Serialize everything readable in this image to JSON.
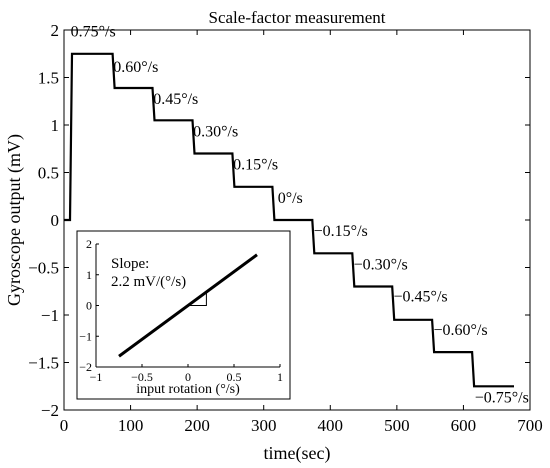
{
  "chart_data": [
    {
      "type": "line",
      "title": "Scale-factor measurement",
      "xlabel": "time(sec)",
      "ylabel": "Gyroscope output (mV)",
      "xlim": [
        0,
        700
      ],
      "ylim": [
        -2,
        2
      ],
      "xticks": [
        0,
        100,
        200,
        300,
        400,
        500,
        600,
        700
      ],
      "yticks": [
        -2,
        -1.5,
        -1,
        -0.5,
        0,
        0.5,
        1,
        1.5,
        2
      ],
      "xtick_labels": [
        "0",
        "100",
        "200",
        "300",
        "400",
        "500",
        "600",
        "700"
      ],
      "ytick_labels": [
        "−2",
        "−1.5",
        "−1",
        "−0.5",
        "0",
        "0.5",
        "1",
        "1.5",
        "2"
      ],
      "grid": false,
      "series": [
        {
          "x": [
            0,
            9,
            12,
            73,
            76,
            133,
            136,
            193,
            196,
            253,
            256,
            313,
            316,
            373,
            376,
            433,
            436,
            493,
            496,
            553,
            556,
            613,
            616,
            676
          ],
          "y": [
            0,
            0,
            1.75,
            1.75,
            1.39,
            1.39,
            1.05,
            1.05,
            0.7,
            0.7,
            0.35,
            0.35,
            0.0,
            0.0,
            -0.35,
            -0.35,
            -0.7,
            -0.7,
            -1.05,
            -1.05,
            -1.39,
            -1.39,
            -1.75,
            -1.75
          ]
        }
      ],
      "annotations": [
        {
          "text": "0.75°/s",
          "x": 10,
          "y": 1.93
        },
        {
          "text": "0.60°/s",
          "x": 74,
          "y": 1.56
        },
        {
          "text": "0.45°/s",
          "x": 134,
          "y": 1.22
        },
        {
          "text": "0.30°/s",
          "x": 194,
          "y": 0.88
        },
        {
          "text": "0.15°/s",
          "x": 254,
          "y": 0.53
        },
        {
          "text": "0°/s",
          "x": 321,
          "y": 0.18
        },
        {
          "text": "−0.15°/s",
          "x": 375,
          "y": -0.17
        },
        {
          "text": "−0.30°/s",
          "x": 435,
          "y": -0.52
        },
        {
          "text": "−0.45°/s",
          "x": 495,
          "y": -0.86
        },
        {
          "text": "−0.60°/s",
          "x": 555,
          "y": -1.21
        },
        {
          "text": "−0.75°/s",
          "x": 617,
          "y": -1.92
        }
      ]
    },
    {
      "type": "line",
      "inset": true,
      "xlabel": "input rotation (°/s)",
      "ylabel": "",
      "xlim": [
        -1,
        1
      ],
      "ylim": [
        -2,
        2
      ],
      "xticks": [
        -1,
        -0.5,
        0,
        0.5,
        1
      ],
      "yticks": [
        -2,
        -1,
        0,
        1,
        2
      ],
      "xtick_labels": [
        "−1",
        "−0.5",
        "0",
        "0.5",
        "1"
      ],
      "ytick_labels": [
        "−2",
        "−1",
        "0",
        "1",
        "2"
      ],
      "series": [
        {
          "x": [
            -0.75,
            0.75
          ],
          "y": [
            -1.65,
            1.65
          ]
        }
      ],
      "slope_triangle": {
        "x0": 0,
        "x1": 0.2,
        "y0": 0,
        "y1": 0.44
      },
      "annotation_lines": [
        "Slope:",
        "2.2 mV/(°/s)"
      ]
    }
  ]
}
